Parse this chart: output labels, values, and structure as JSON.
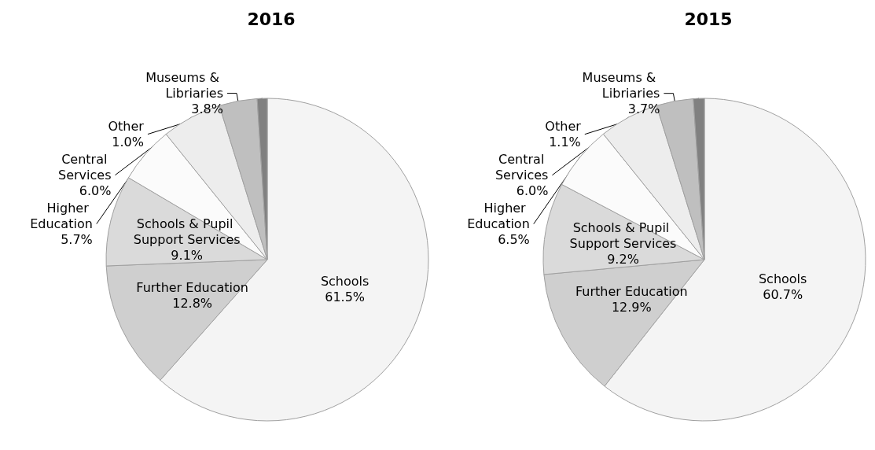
{
  "chart_data": [
    {
      "type": "pie",
      "title": "2016",
      "categories": [
        "Schools",
        "Further Education",
        "Schools & Pupil Support Services",
        "Higher Education",
        "Central Services",
        "Museums & Libriaries",
        "Other"
      ],
      "values": [
        61.5,
        12.8,
        9.1,
        5.7,
        6.0,
        3.8,
        1.0
      ],
      "value_labels": [
        "61.5%",
        "12.8%",
        "9.1%",
        "5.7%",
        "6.0%",
        "3.8%",
        "1.0%"
      ],
      "colors": [
        "#f4f4f4",
        "#cfcfcf",
        "#dadada",
        "#fbfbfb",
        "#ededed",
        "#bfbfbf",
        "#808080"
      ],
      "legend": false
    },
    {
      "type": "pie",
      "title": "2015",
      "categories": [
        "Schools",
        "Further Education",
        "Schools & Pupil Support Services",
        "Higher Education",
        "Central Services",
        "Museums & Libriaries",
        "Other"
      ],
      "values": [
        60.7,
        12.9,
        9.2,
        6.5,
        6.0,
        3.7,
        1.1
      ],
      "value_labels": [
        "60.7%",
        "12.9%",
        "9.2%",
        "6.5%",
        "6.0%",
        "3.7%",
        "1.1%"
      ],
      "colors": [
        "#f4f4f4",
        "#cfcfcf",
        "#dadada",
        "#fbfbfb",
        "#ededed",
        "#bfbfbf",
        "#808080"
      ],
      "legend": false
    }
  ]
}
